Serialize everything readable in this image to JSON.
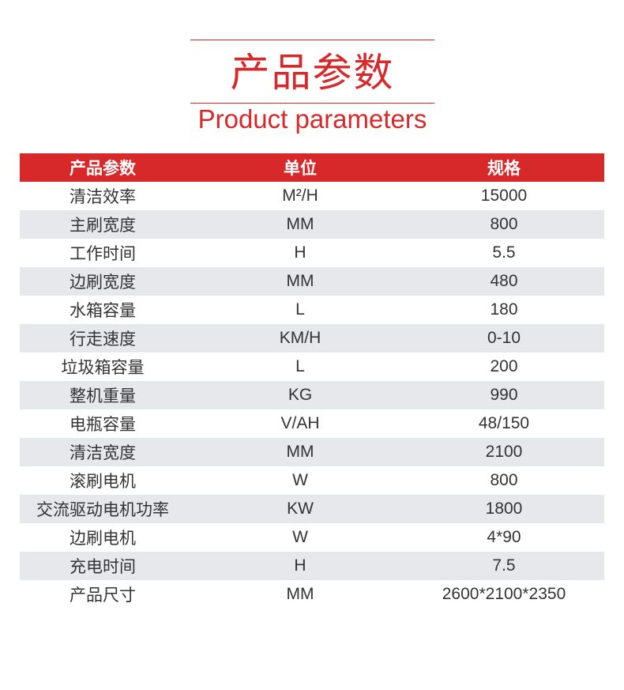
{
  "title_cn": "产品参数",
  "title_en": "Product parameters",
  "colors": {
    "accent": "#d7282a",
    "stripe": "#e6e8ec"
  },
  "table": {
    "headers": [
      "产品参数",
      "单位",
      "规格"
    ],
    "rows": [
      [
        "清洁效率",
        "M²/H",
        "15000"
      ],
      [
        "主刷宽度",
        "MM",
        "800"
      ],
      [
        "工作时间",
        "H",
        "5.5"
      ],
      [
        "边刷宽度",
        "MM",
        "480"
      ],
      [
        "水箱容量",
        "L",
        "180"
      ],
      [
        "行走速度",
        "KM/H",
        "0-10"
      ],
      [
        "垃圾箱容量",
        "L",
        "200"
      ],
      [
        "整机重量",
        "KG",
        "990"
      ],
      [
        "电瓶容量",
        "V/AH",
        "48/150"
      ],
      [
        "清洁宽度",
        "MM",
        "2100"
      ],
      [
        "滚刷电机",
        "W",
        "800"
      ],
      [
        "交流驱动电机功率",
        "KW",
        "1800"
      ],
      [
        "边刷电机",
        "W",
        "4*90"
      ],
      [
        "充电时间",
        "H",
        "7.5"
      ],
      [
        "产品尺寸",
        "MM",
        "2600*2100*2350"
      ]
    ]
  }
}
